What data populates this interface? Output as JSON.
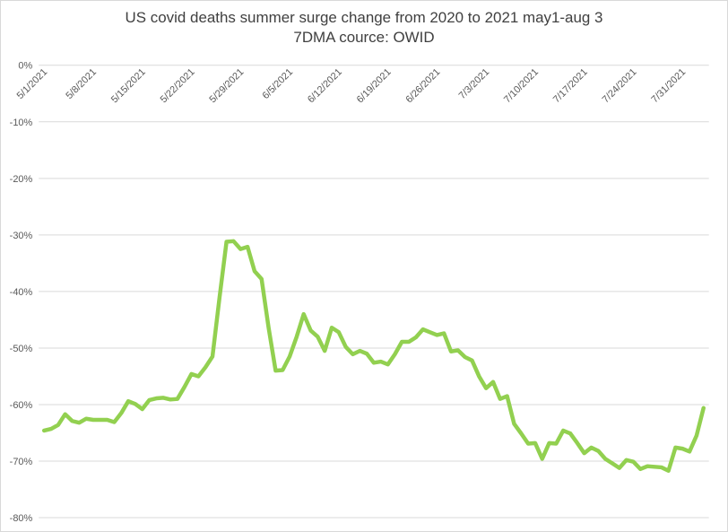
{
  "chart_data": {
    "type": "line",
    "title": "US covid deaths summer surge change from 2020 to 2021 may1-aug 3",
    "subtitle": "7DMA cource: OWID",
    "xlabel": "",
    "ylabel": "",
    "ylim": [
      -80,
      0
    ],
    "yticks": [
      "0%",
      "-10%",
      "-20%",
      "-30%",
      "-40%",
      "-50%",
      "-60%",
      "-70%",
      "-80%"
    ],
    "xticks": [
      "5/1/2021",
      "5/8/2021",
      "5/15/2021",
      "5/22/2021",
      "5/29/2021",
      "6/5/2021",
      "6/12/2021",
      "6/19/2021",
      "6/26/2021",
      "7/3/2021",
      "7/10/2021",
      "7/17/2021",
      "7/24/2021",
      "7/31/2021"
    ],
    "grid": true,
    "legend": "none",
    "series": [
      {
        "color": "#92d050",
        "values": [
          -64.6,
          -64.3,
          -63.6,
          -61.7,
          -62.9,
          -63.2,
          -62.5,
          -62.7,
          -62.7,
          -62.7,
          -63.1,
          -61.5,
          -59.4,
          -59.9,
          -60.8,
          -59.2,
          -58.9,
          -58.8,
          -59.1,
          -59.0,
          -56.9,
          -54.6,
          -55.0,
          -53.4,
          -51.5,
          -41.1,
          -31.2,
          -31.1,
          -32.5,
          -32.1,
          -36.4,
          -37.8,
          -46.4,
          -54.0,
          -53.9,
          -51.5,
          -48.0,
          -44.0,
          -46.9,
          -48.0,
          -50.5,
          -46.4,
          -47.2,
          -49.8,
          -51.1,
          -50.5,
          -51.0,
          -52.6,
          -52.4,
          -52.9,
          -51.1,
          -48.9,
          -48.9,
          -48.1,
          -46.7,
          -47.2,
          -47.7,
          -47.4,
          -50.6,
          -50.4,
          -51.6,
          -52.2,
          -55.0,
          -57.1,
          -56.0,
          -59.0,
          -58.5,
          -63.4,
          -65.1,
          -66.9,
          -66.8,
          -69.6,
          -66.8,
          -66.9,
          -64.6,
          -65.1,
          -66.8,
          -68.6,
          -67.6,
          -68.2,
          -69.6,
          -70.4,
          -71.2,
          -69.8,
          -70.1,
          -71.4,
          -70.9,
          -71.0,
          -71.1,
          -71.7,
          -67.6,
          -67.8,
          -68.3,
          -65.5,
          -60.6
        ]
      }
    ]
  }
}
